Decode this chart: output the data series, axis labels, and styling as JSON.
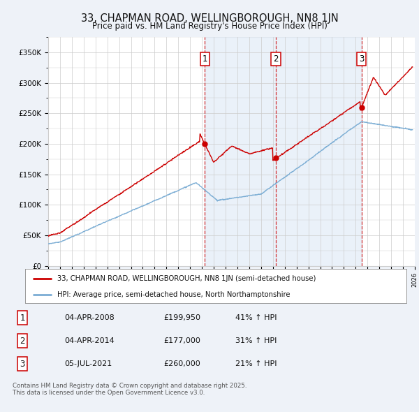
{
  "title": "33, CHAPMAN ROAD, WELLINGBOROUGH, NN8 1JN",
  "subtitle": "Price paid vs. HM Land Registry's House Price Index (HPI)",
  "background_color": "#eef2f8",
  "plot_bg_color": "#ffffff",
  "x_start_year": 1995,
  "x_end_year": 2026,
  "y_min": 0,
  "y_max": 375000,
  "y_ticks": [
    0,
    50000,
    100000,
    150000,
    200000,
    250000,
    300000,
    350000
  ],
  "y_tick_labels": [
    "£0",
    "£50K",
    "£100K",
    "£150K",
    "£200K",
    "£250K",
    "£300K",
    "£350K"
  ],
  "sale_dates_num": [
    2008.25,
    2014.25,
    2021.5
  ],
  "sale_prices": [
    199950,
    177000,
    260000
  ],
  "sale_labels": [
    "1",
    "2",
    "3"
  ],
  "dashed_line_color": "#cc0000",
  "shade_color": "#dce8f5",
  "shade_alpha": 0.6,
  "red_line_color": "#cc0000",
  "blue_line_color": "#7badd4",
  "legend_label_red": "33, CHAPMAN ROAD, WELLINGBOROUGH, NN8 1JN (semi-detached house)",
  "legend_label_blue": "HPI: Average price, semi-detached house, North Northamptonshire",
  "table_rows": [
    [
      "1",
      "04-APR-2008",
      "£199,950",
      "41% ↑ HPI"
    ],
    [
      "2",
      "04-APR-2014",
      "£177,000",
      "31% ↑ HPI"
    ],
    [
      "3",
      "05-JUL-2021",
      "£260,000",
      "21% ↑ HPI"
    ]
  ],
  "footer": "Contains HM Land Registry data © Crown copyright and database right 2025.\nThis data is licensed under the Open Government Licence v3.0.",
  "grid_color": "#cccccc"
}
